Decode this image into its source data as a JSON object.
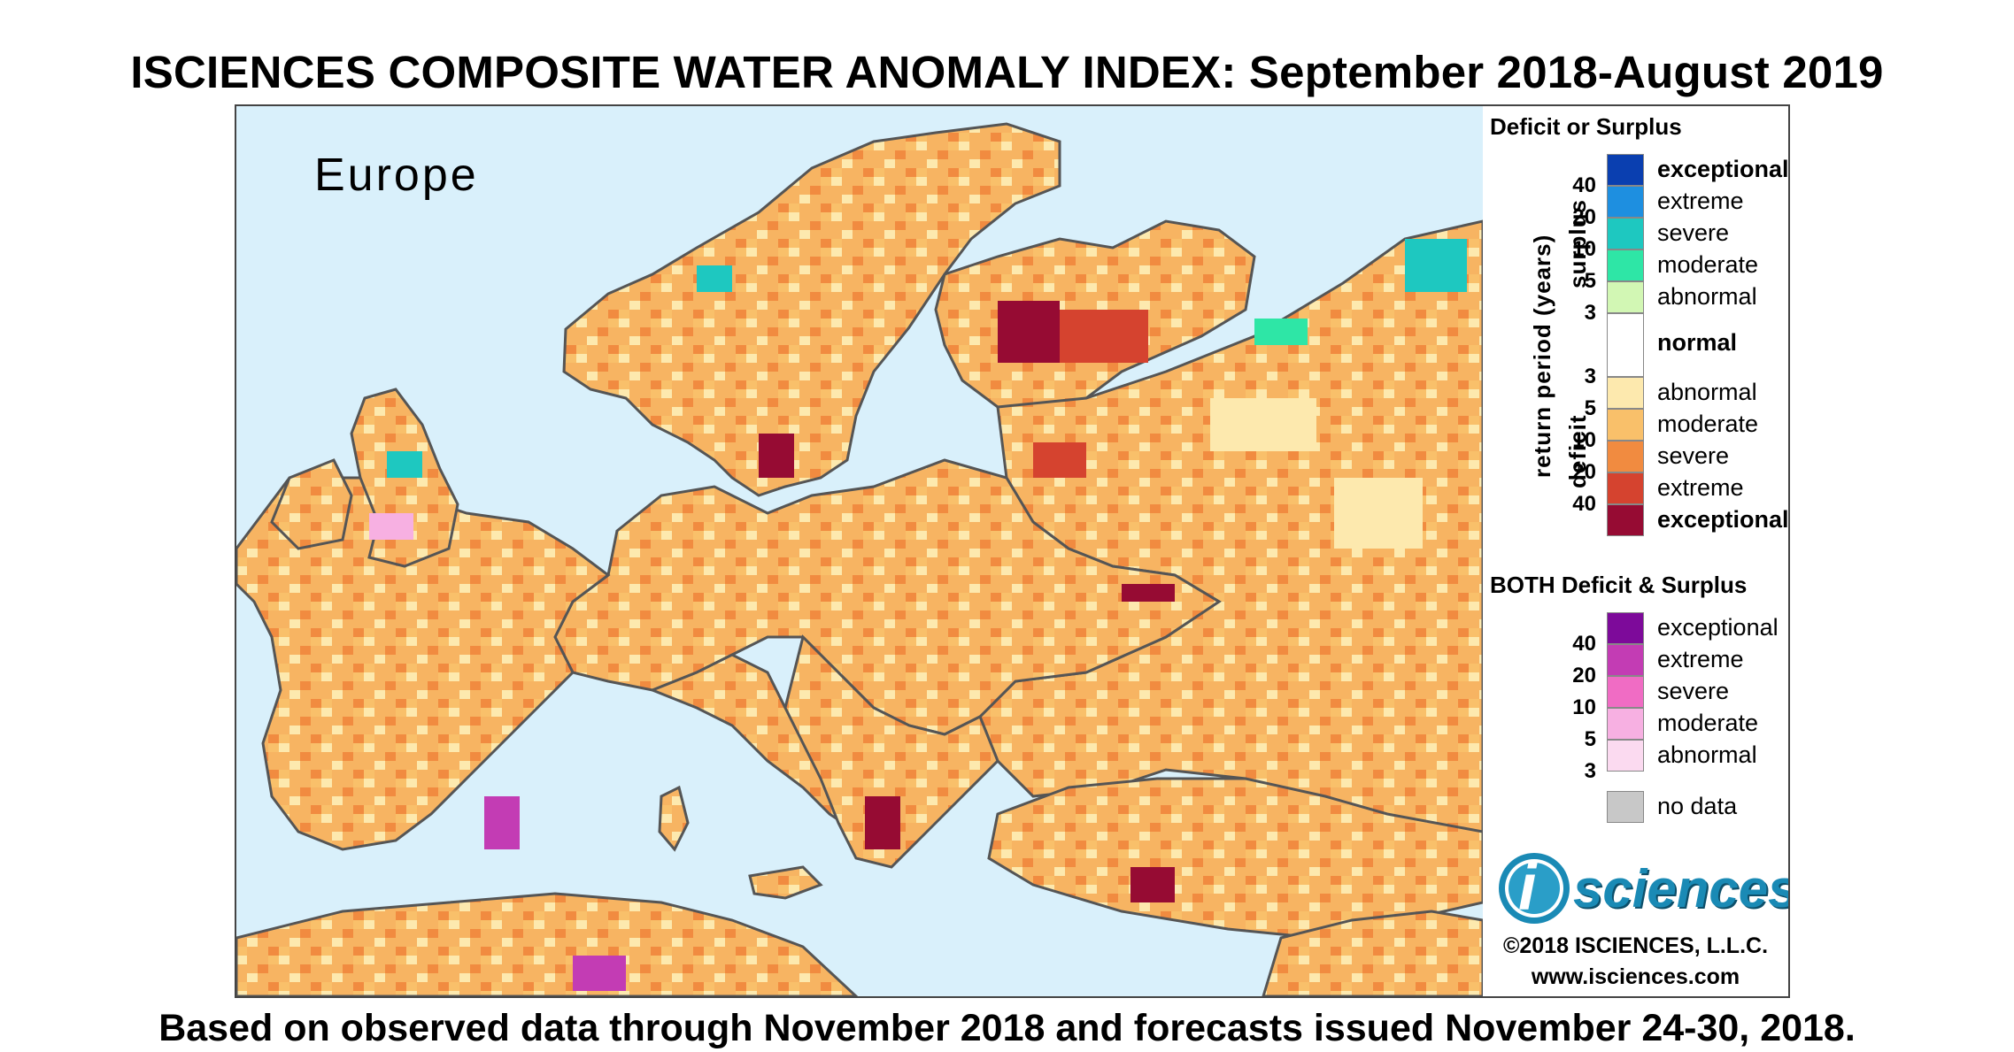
{
  "title": "ISCIENCES COMPOSITE WATER ANOMALY INDEX: September 2018-August 2019",
  "footer": "Based on observed data through November 2018 and forecasts issued November 24-30, 2018.",
  "map": {
    "region_label": "Europe"
  },
  "legend": {
    "deficit_surplus_heading": "Deficit or Surplus",
    "surplus_axis_label": "surplus",
    "deficit_axis_label": "deficit",
    "return_period_label": "return period (years)",
    "surplus_items": [
      {
        "label": "exceptional",
        "color": "#0a3fb0",
        "bold": true
      },
      {
        "label": "extreme",
        "color": "#1e8fe0",
        "bold": false
      },
      {
        "label": "severe",
        "color": "#1ec8c0",
        "bold": false
      },
      {
        "label": "moderate",
        "color": "#2ee6a6",
        "bold": false
      },
      {
        "label": "abnormal",
        "color": "#d2f7b4",
        "bold": false
      }
    ],
    "surplus_ticks": [
      "40",
      "20",
      "10",
      "5",
      "3"
    ],
    "normal_label": "normal",
    "normal_color": "#ffffff",
    "deficit_ticks": [
      "3",
      "5",
      "10",
      "20",
      "40"
    ],
    "deficit_items": [
      {
        "label": "abnormal",
        "color": "#fde9ae",
        "bold": false
      },
      {
        "label": "moderate",
        "color": "#f9c06a",
        "bold": false
      },
      {
        "label": "severe",
        "color": "#f18b40",
        "bold": false
      },
      {
        "label": "extreme",
        "color": "#d5432f",
        "bold": false
      },
      {
        "label": "exceptional",
        "color": "#960b33",
        "bold": true
      }
    ],
    "both_heading": "BOTH Deficit & Surplus",
    "both_items": [
      {
        "label": "exceptional",
        "color": "#7d0a9a"
      },
      {
        "label": "extreme",
        "color": "#c33cb4"
      },
      {
        "label": "severe",
        "color": "#f06cc4"
      },
      {
        "label": "moderate",
        "color": "#f7b0e2"
      },
      {
        "label": "abnormal",
        "color": "#fbdaf0"
      }
    ],
    "both_ticks": [
      "40",
      "20",
      "10",
      "5",
      "3"
    ],
    "no_data_label": "no data",
    "no_data_color": "#c8c8c8"
  },
  "branding": {
    "logo_letter": "i",
    "logo_text": "sciences",
    "logo_color": "#1a8ab5",
    "copyright": "©2018 ISCIENCES, L.L.C.",
    "website": "www.isciences.com"
  }
}
